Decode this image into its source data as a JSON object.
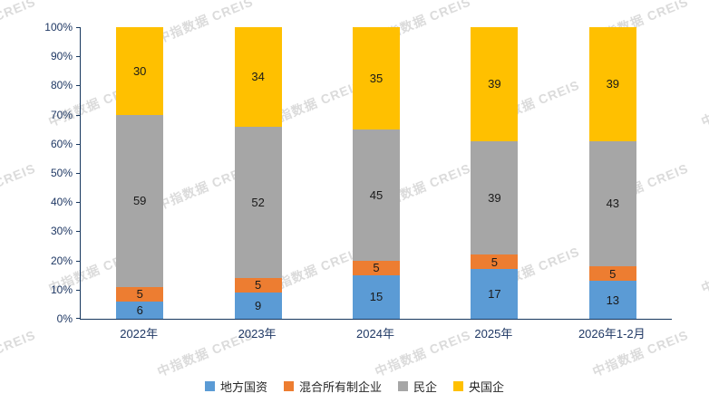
{
  "watermark": {
    "text": "中指数据 CREIS"
  },
  "chart_data": {
    "type": "bar",
    "stacked": true,
    "percent": true,
    "title": "",
    "xlabel": "",
    "ylabel": "",
    "categories": [
      "2022年",
      "2023年",
      "2024年",
      "2025年",
      "2026年1-2月"
    ],
    "series": [
      {
        "name": "地方国资",
        "color": "#5b9bd5",
        "values": [
          6,
          9,
          15,
          17,
          13
        ]
      },
      {
        "name": "混合所有制企业",
        "color": "#ed7d31",
        "values": [
          5,
          5,
          5,
          5,
          5
        ]
      },
      {
        "name": "民企",
        "color": "#a6a6a6",
        "values": [
          59,
          52,
          45,
          39,
          43
        ]
      },
      {
        "name": "央国企",
        "color": "#ffc000",
        "values": [
          30,
          34,
          35,
          39,
          39
        ]
      }
    ],
    "ylim": [
      0,
      100
    ],
    "ytick_step": 10,
    "ytick_suffix": "%",
    "grid": false,
    "legend_position": "bottom"
  }
}
